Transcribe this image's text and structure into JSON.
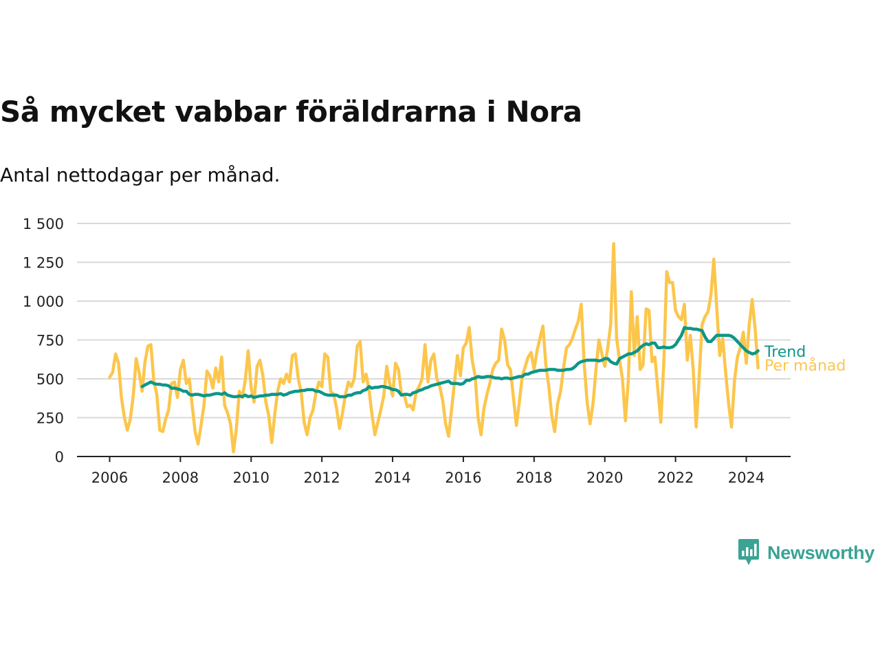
{
  "header": {
    "title": "Så mycket vabbar föräldrarna i Nora",
    "subtitle": "Antal nettodagar per månad."
  },
  "brand": {
    "name": "Newsworthy",
    "color": "#3aa394",
    "icon": "newsworthy-logo-icon"
  },
  "colors": {
    "trend": "#0e9688",
    "monthly": "#fcc64c",
    "grid": "#d9d9d9",
    "axis": "#222222"
  },
  "chart_data": {
    "type": "line",
    "title": "Så mycket vabbar föräldrarna i Nora",
    "subtitle": "Antal nettodagar per månad.",
    "xlabel": "",
    "ylabel": "",
    "xlim": [
      2005.75,
      2024.9
    ],
    "ylim": [
      0,
      1500
    ],
    "grid": true,
    "x_ticks": [
      2006,
      2008,
      2010,
      2012,
      2014,
      2016,
      2018,
      2020,
      2022,
      2024
    ],
    "x_tick_labels": [
      "2006",
      "2008",
      "2010",
      "2012",
      "2014",
      "2016",
      "2018",
      "2020",
      "2022",
      "2024"
    ],
    "y_ticks": [
      0,
      250,
      500,
      750,
      1000,
      1250,
      1500
    ],
    "y_tick_labels": [
      "0",
      "250",
      "500",
      "750",
      "1 000",
      "1 250",
      "1 500"
    ],
    "series": [
      {
        "name": "Per månad",
        "color": "#fcc64c",
        "x": [
          2006.0,
          2006.083,
          2006.167,
          2006.25,
          2006.333,
          2006.417,
          2006.5,
          2006.583,
          2006.667,
          2006.75,
          2006.833,
          2006.917,
          2007.0,
          2007.083,
          2007.167,
          2007.25,
          2007.333,
          2007.417,
          2007.5,
          2007.583,
          2007.667,
          2007.75,
          2007.833,
          2007.917,
          2008.0,
          2008.083,
          2008.167,
          2008.25,
          2008.333,
          2008.417,
          2008.5,
          2008.583,
          2008.667,
          2008.75,
          2008.833,
          2008.917,
          2009.0,
          2009.083,
          2009.167,
          2009.25,
          2009.333,
          2009.417,
          2009.5,
          2009.583,
          2009.667,
          2009.75,
          2009.833,
          2009.917,
          2010.0,
          2010.083,
          2010.167,
          2010.25,
          2010.333,
          2010.417,
          2010.5,
          2010.583,
          2010.667,
          2010.75,
          2010.833,
          2010.917,
          2011.0,
          2011.083,
          2011.167,
          2011.25,
          2011.333,
          2011.417,
          2011.5,
          2011.583,
          2011.667,
          2011.75,
          2011.833,
          2011.917,
          2012.0,
          2012.083,
          2012.167,
          2012.25,
          2012.333,
          2012.417,
          2012.5,
          2012.583,
          2012.667,
          2012.75,
          2012.833,
          2012.917,
          2013.0,
          2013.083,
          2013.167,
          2013.25,
          2013.333,
          2013.417,
          2013.5,
          2013.583,
          2013.667,
          2013.75,
          2013.833,
          2013.917,
          2014.0,
          2014.083,
          2014.167,
          2014.25,
          2014.333,
          2014.417,
          2014.5,
          2014.583,
          2014.667,
          2014.75,
          2014.833,
          2014.917,
          2015.0,
          2015.083,
          2015.167,
          2015.25,
          2015.333,
          2015.417,
          2015.5,
          2015.583,
          2015.667,
          2015.75,
          2015.833,
          2015.917,
          2016.0,
          2016.083,
          2016.167,
          2016.25,
          2016.333,
          2016.417,
          2016.5,
          2016.583,
          2016.667,
          2016.75,
          2016.833,
          2016.917,
          2017.0,
          2017.083,
          2017.167,
          2017.25,
          2017.333,
          2017.417,
          2017.5,
          2017.583,
          2017.667,
          2017.75,
          2017.833,
          2017.917,
          2018.0,
          2018.083,
          2018.167,
          2018.25,
          2018.333,
          2018.417,
          2018.5,
          2018.583,
          2018.667,
          2018.75,
          2018.833,
          2018.917,
          2019.0,
          2019.083,
          2019.167,
          2019.25,
          2019.333,
          2019.417,
          2019.5,
          2019.583,
          2019.667,
          2019.75,
          2019.833,
          2019.917,
          2020.0,
          2020.083,
          2020.167,
          2020.25,
          2020.333,
          2020.417,
          2020.5,
          2020.583,
          2020.667,
          2020.75,
          2020.833,
          2020.917,
          2021.0,
          2021.083,
          2021.167,
          2021.25,
          2021.333,
          2021.417,
          2021.5,
          2021.583,
          2021.667,
          2021.75,
          2021.833,
          2021.917,
          2022.0,
          2022.083,
          2022.167,
          2022.25,
          2022.333,
          2022.417,
          2022.5,
          2022.583,
          2022.667,
          2022.75,
          2022.833,
          2022.917,
          2023.0,
          2023.083,
          2023.167,
          2023.25,
          2023.333,
          2023.417,
          2023.5,
          2023.583,
          2023.667,
          2023.75,
          2023.833,
          2023.917,
          2024.0,
          2024.083,
          2024.167,
          2024.25,
          2024.333
        ],
        "values": [
          510,
          540,
          660,
          600,
          380,
          250,
          170,
          240,
          390,
          630,
          540,
          420,
          610,
          710,
          720,
          480,
          400,
          170,
          160,
          240,
          300,
          470,
          480,
          380,
          560,
          620,
          470,
          500,
          330,
          160,
          80,
          200,
          330,
          550,
          520,
          440,
          570,
          480,
          640,
          330,
          280,
          210,
          30,
          180,
          420,
          380,
          490,
          680,
          440,
          350,
          580,
          620,
          520,
          350,
          260,
          90,
          270,
          420,
          500,
          470,
          530,
          480,
          650,
          660,
          500,
          410,
          220,
          140,
          250,
          300,
          410,
          480,
          450,
          660,
          640,
          420,
          400,
          310,
          180,
          280,
          400,
          480,
          450,
          500,
          710,
          740,
          480,
          530,
          430,
          270,
          140,
          220,
          300,
          390,
          580,
          470,
          390,
          600,
          560,
          400,
          390,
          320,
          330,
          300,
          420,
          450,
          500,
          720,
          480,
          620,
          660,
          500,
          450,
          360,
          210,
          130,
          300,
          480,
          650,
          520,
          700,
          730,
          830,
          620,
          520,
          250,
          140,
          310,
          400,
          470,
          560,
          600,
          620,
          820,
          750,
          590,
          560,
          380,
          200,
          350,
          520,
          580,
          640,
          670,
          560,
          680,
          760,
          840,
          590,
          450,
          260,
          160,
          340,
          420,
          570,
          700,
          720,
          760,
          820,
          870,
          980,
          600,
          350,
          210,
          340,
          560,
          750,
          660,
          580,
          700,
          850,
          1370,
          760,
          620,
          500,
          230,
          500,
          1060,
          650,
          900,
          560,
          590,
          950,
          940,
          610,
          640,
          430,
          220,
          600,
          1190,
          1120,
          1120,
          940,
          900,
          880,
          980,
          620,
          780,
          560,
          190,
          500,
          850,
          900,
          930,
          1040,
          1270,
          950,
          650,
          760,
          540,
          340,
          190,
          490,
          640,
          700,
          800,
          600,
          850,
          1010,
          820,
          570
        ]
      },
      {
        "name": "Trend",
        "color": "#0e9688",
        "x": [
          2006.917,
          2007.0,
          2007.083,
          2007.167,
          2007.25,
          2007.333,
          2007.417,
          2007.5,
          2007.583,
          2007.667,
          2007.75,
          2007.833,
          2007.917,
          2008.0,
          2008.083,
          2008.167,
          2008.25,
          2008.333,
          2008.417,
          2008.5,
          2008.583,
          2008.667,
          2008.75,
          2008.833,
          2008.917,
          2009.0,
          2009.083,
          2009.167,
          2009.25,
          2009.333,
          2009.417,
          2009.5,
          2009.583,
          2009.667,
          2009.75,
          2009.833,
          2009.917,
          2010.0,
          2010.083,
          2010.167,
          2010.25,
          2010.333,
          2010.417,
          2010.5,
          2010.583,
          2010.667,
          2010.75,
          2010.833,
          2010.917,
          2011.0,
          2011.083,
          2011.167,
          2011.25,
          2011.333,
          2011.417,
          2011.5,
          2011.583,
          2011.667,
          2011.75,
          2011.833,
          2011.917,
          2012.0,
          2012.083,
          2012.167,
          2012.25,
          2012.333,
          2012.417,
          2012.5,
          2012.583,
          2012.667,
          2012.75,
          2012.833,
          2012.917,
          2013.0,
          2013.083,
          2013.167,
          2013.25,
          2013.333,
          2013.417,
          2013.5,
          2013.583,
          2013.667,
          2013.75,
          2013.833,
          2013.917,
          2014.0,
          2014.083,
          2014.167,
          2014.25,
          2014.333,
          2014.417,
          2014.5,
          2014.583,
          2014.667,
          2014.75,
          2014.833,
          2014.917,
          2015.0,
          2015.083,
          2015.167,
          2015.25,
          2015.333,
          2015.417,
          2015.5,
          2015.583,
          2015.667,
          2015.75,
          2015.833,
          2015.917,
          2016.0,
          2016.083,
          2016.167,
          2016.25,
          2016.333,
          2016.417,
          2016.5,
          2016.583,
          2016.667,
          2016.75,
          2016.833,
          2016.917,
          2017.0,
          2017.083,
          2017.167,
          2017.25,
          2017.333,
          2017.417,
          2017.5,
          2017.583,
          2017.667,
          2017.75,
          2017.833,
          2017.917,
          2018.0,
          2018.083,
          2018.167,
          2018.25,
          2018.333,
          2018.417,
          2018.5,
          2018.583,
          2018.667,
          2018.75,
          2018.833,
          2018.917,
          2019.0,
          2019.083,
          2019.167,
          2019.25,
          2019.333,
          2019.417,
          2019.5,
          2019.583,
          2019.667,
          2019.75,
          2019.833,
          2019.917,
          2020.0,
          2020.083,
          2020.167,
          2020.25,
          2020.333,
          2020.417,
          2020.5,
          2020.583,
          2020.667,
          2020.75,
          2020.833,
          2020.917,
          2021.0,
          2021.083,
          2021.167,
          2021.25,
          2021.333,
          2021.417,
          2021.5,
          2021.583,
          2021.667,
          2021.75,
          2021.833,
          2021.917,
          2022.0,
          2022.083,
          2022.167,
          2022.25,
          2022.333,
          2022.417,
          2022.5,
          2022.583,
          2022.667,
          2022.75,
          2022.833,
          2022.917,
          2023.0,
          2023.083,
          2023.167,
          2023.25,
          2023.333,
          2023.417,
          2023.5,
          2023.583,
          2023.667,
          2023.75,
          2023.833,
          2023.917,
          2024.0,
          2024.083,
          2024.167,
          2024.25,
          2024.333
        ],
        "values": [
          450,
          460,
          470,
          480,
          470,
          465,
          465,
          460,
          460,
          455,
          440,
          440,
          435,
          430,
          420,
          420,
          400,
          395,
          400,
          400,
          395,
          390,
          395,
          395,
          400,
          405,
          405,
          400,
          410,
          395,
          390,
          385,
          385,
          390,
          385,
          395,
          385,
          390,
          380,
          385,
          390,
          390,
          395,
          395,
          400,
          400,
          400,
          405,
          395,
          400,
          410,
          415,
          420,
          420,
          425,
          425,
          430,
          430,
          430,
          420,
          420,
          410,
          400,
          395,
          395,
          395,
          395,
          385,
          385,
          385,
          395,
          395,
          405,
          410,
          410,
          425,
          430,
          450,
          440,
          445,
          445,
          450,
          450,
          445,
          440,
          430,
          430,
          420,
          395,
          400,
          400,
          395,
          410,
          415,
          425,
          430,
          440,
          445,
          455,
          460,
          465,
          470,
          475,
          480,
          485,
          470,
          470,
          470,
          465,
          470,
          490,
          490,
          500,
          505,
          515,
          510,
          510,
          515,
          515,
          510,
          505,
          505,
          500,
          505,
          505,
          500,
          505,
          510,
          515,
          515,
          530,
          530,
          540,
          545,
          550,
          555,
          555,
          555,
          560,
          560,
          560,
          555,
          555,
          555,
          560,
          560,
          565,
          580,
          600,
          610,
          615,
          620,
          620,
          620,
          620,
          615,
          620,
          630,
          630,
          610,
          600,
          595,
          630,
          640,
          650,
          660,
          660,
          670,
          680,
          700,
          715,
          725,
          720,
          730,
          730,
          700,
          700,
          705,
          700,
          700,
          705,
          720,
          750,
          780,
          830,
          825,
          825,
          820,
          820,
          815,
          810,
          770,
          740,
          740,
          760,
          780,
          780,
          780,
          780,
          780,
          775,
          760,
          740,
          720,
          700,
          680,
          670,
          660,
          665,
          680
        ]
      }
    ],
    "legend": "inline at line ends, right",
    "series_labels": [
      "Trend",
      "Per månad"
    ]
  }
}
